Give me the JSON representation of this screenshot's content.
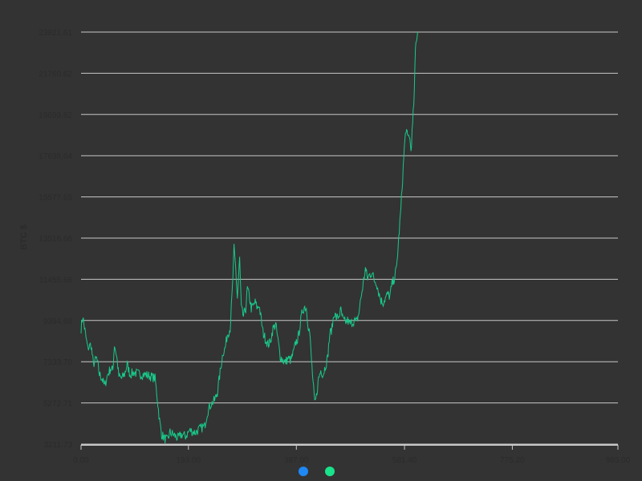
{
  "colors": {
    "background": "#333333",
    "grid": "#c8c8c8",
    "series_line": "#19c98a",
    "tick_text": "#2b2b2b",
    "legend_blue": "#1e88f5",
    "legend_green": "#19e38b"
  },
  "chart_data": {
    "type": "line",
    "title": "",
    "xlabel": "",
    "ylabel": "BTC $",
    "xlim": [
      0,
      965
    ],
    "ylim": [
      3211.73,
      23821.61
    ],
    "grid": true,
    "xticks": [
      "0.00",
      "193.00",
      "387.00",
      "581.40",
      "775.20",
      "965.00"
    ],
    "yticks": [
      "3211.73",
      "5272.71",
      "7333.70",
      "9394.68",
      "11455.66",
      "13516.66",
      "15577.65",
      "17638.64",
      "19699.62",
      "21760.62",
      "23821.61"
    ],
    "legend": [
      {
        "marker_color": "#1e88f5"
      },
      {
        "marker_color": "#19e38b"
      }
    ],
    "series": [
      {
        "color": "#19c98a",
        "anchors": [
          [
            0,
            9000
          ],
          [
            3,
            9600
          ],
          [
            8,
            8700
          ],
          [
            12,
            8000
          ],
          [
            18,
            8200
          ],
          [
            22,
            7200
          ],
          [
            28,
            7500
          ],
          [
            33,
            6700
          ],
          [
            38,
            6500
          ],
          [
            42,
            6100
          ],
          [
            48,
            6700
          ],
          [
            53,
            7000
          ],
          [
            57,
            6900
          ],
          [
            60,
            8200
          ],
          [
            64,
            7600
          ],
          [
            68,
            6600
          ],
          [
            73,
            6500
          ],
          [
            78,
            6700
          ],
          [
            83,
            7200
          ],
          [
            88,
            6700
          ],
          [
            95,
            6800
          ],
          [
            105,
            6700
          ],
          [
            115,
            6700
          ],
          [
            125,
            6600
          ],
          [
            133,
            6500
          ],
          [
            137,
            5500
          ],
          [
            141,
            4400
          ],
          [
            145,
            3700
          ],
          [
            150,
            3500
          ],
          [
            155,
            3400
          ],
          [
            160,
            3800
          ],
          [
            165,
            3700
          ],
          [
            170,
            3600
          ],
          [
            175,
            3500
          ],
          [
            180,
            3700
          ],
          [
            188,
            3600
          ],
          [
            195,
            3900
          ],
          [
            205,
            3800
          ],
          [
            215,
            4000
          ],
          [
            222,
            4100
          ],
          [
            227,
            4800
          ],
          [
            233,
            5200
          ],
          [
            240,
            5400
          ],
          [
            245,
            5800
          ],
          [
            250,
            6800
          ],
          [
            255,
            7800
          ],
          [
            259,
            8000
          ],
          [
            263,
            8700
          ],
          [
            268,
            9000
          ],
          [
            272,
            11000
          ],
          [
            275,
            13000
          ],
          [
            278,
            12000
          ],
          [
            281,
            10500
          ],
          [
            285,
            12500
          ],
          [
            288,
            10000
          ],
          [
            292,
            9600
          ],
          [
            296,
            10000
          ],
          [
            299,
            11000
          ],
          [
            303,
            10500
          ],
          [
            306,
            10000
          ],
          [
            309,
            10100
          ],
          [
            313,
            10300
          ],
          [
            317,
            10000
          ],
          [
            320,
            10200
          ],
          [
            324,
            9400
          ],
          [
            327,
            8800
          ],
          [
            331,
            8500
          ],
          [
            336,
            8200
          ],
          [
            340,
            8300
          ],
          [
            345,
            9000
          ],
          [
            350,
            9200
          ],
          [
            354,
            8400
          ],
          [
            358,
            7600
          ],
          [
            363,
            7400
          ],
          [
            367,
            7300
          ],
          [
            372,
            7500
          ],
          [
            377,
            7400
          ],
          [
            382,
            7800
          ],
          [
            386,
            8300
          ],
          [
            390,
            8500
          ],
          [
            394,
            9200
          ],
          [
            398,
            9900
          ],
          [
            402,
            10100
          ],
          [
            405,
            10000
          ],
          [
            408,
            9200
          ],
          [
            411,
            8800
          ],
          [
            414,
            7500
          ],
          [
            417,
            6300
          ],
          [
            420,
            5200
          ],
          [
            423,
            5600
          ],
          [
            427,
            6500
          ],
          [
            431,
            6900
          ],
          [
            435,
            6700
          ],
          [
            439,
            7100
          ],
          [
            443,
            7500
          ],
          [
            447,
            8700
          ],
          [
            451,
            9000
          ],
          [
            455,
            9800
          ],
          [
            459,
            9500
          ],
          [
            463,
            9600
          ],
          [
            467,
            9900
          ],
          [
            471,
            9400
          ],
          [
            475,
            9300
          ],
          [
            479,
            9400
          ],
          [
            483,
            9200
          ],
          [
            487,
            9300
          ],
          [
            491,
            9400
          ],
          [
            495,
            9300
          ],
          [
            499,
            9700
          ],
          [
            503,
            10500
          ],
          [
            507,
            11200
          ],
          [
            511,
            12000
          ],
          [
            515,
            11500
          ],
          [
            519,
            11700
          ],
          [
            523,
            11800
          ],
          [
            527,
            11400
          ],
          [
            531,
            11300
          ],
          [
            535,
            10800
          ],
          [
            539,
            10400
          ],
          [
            543,
            10300
          ],
          [
            547,
            10500
          ],
          [
            551,
            10700
          ],
          [
            555,
            10600
          ],
          [
            559,
            11200
          ],
          [
            563,
            11500
          ],
          [
            567,
            12000
          ],
          [
            571,
            13500
          ],
          [
            575,
            15000
          ],
          [
            578,
            16500
          ],
          [
            581,
            18000
          ],
          [
            584,
            19000
          ],
          [
            587,
            18500
          ],
          [
            590,
            18700
          ],
          [
            593,
            17900
          ],
          [
            596,
            19200
          ],
          [
            599,
            20800
          ],
          [
            601,
            23000
          ],
          [
            603,
            23500
          ],
          [
            605,
            23821
          ]
        ]
      }
    ]
  }
}
